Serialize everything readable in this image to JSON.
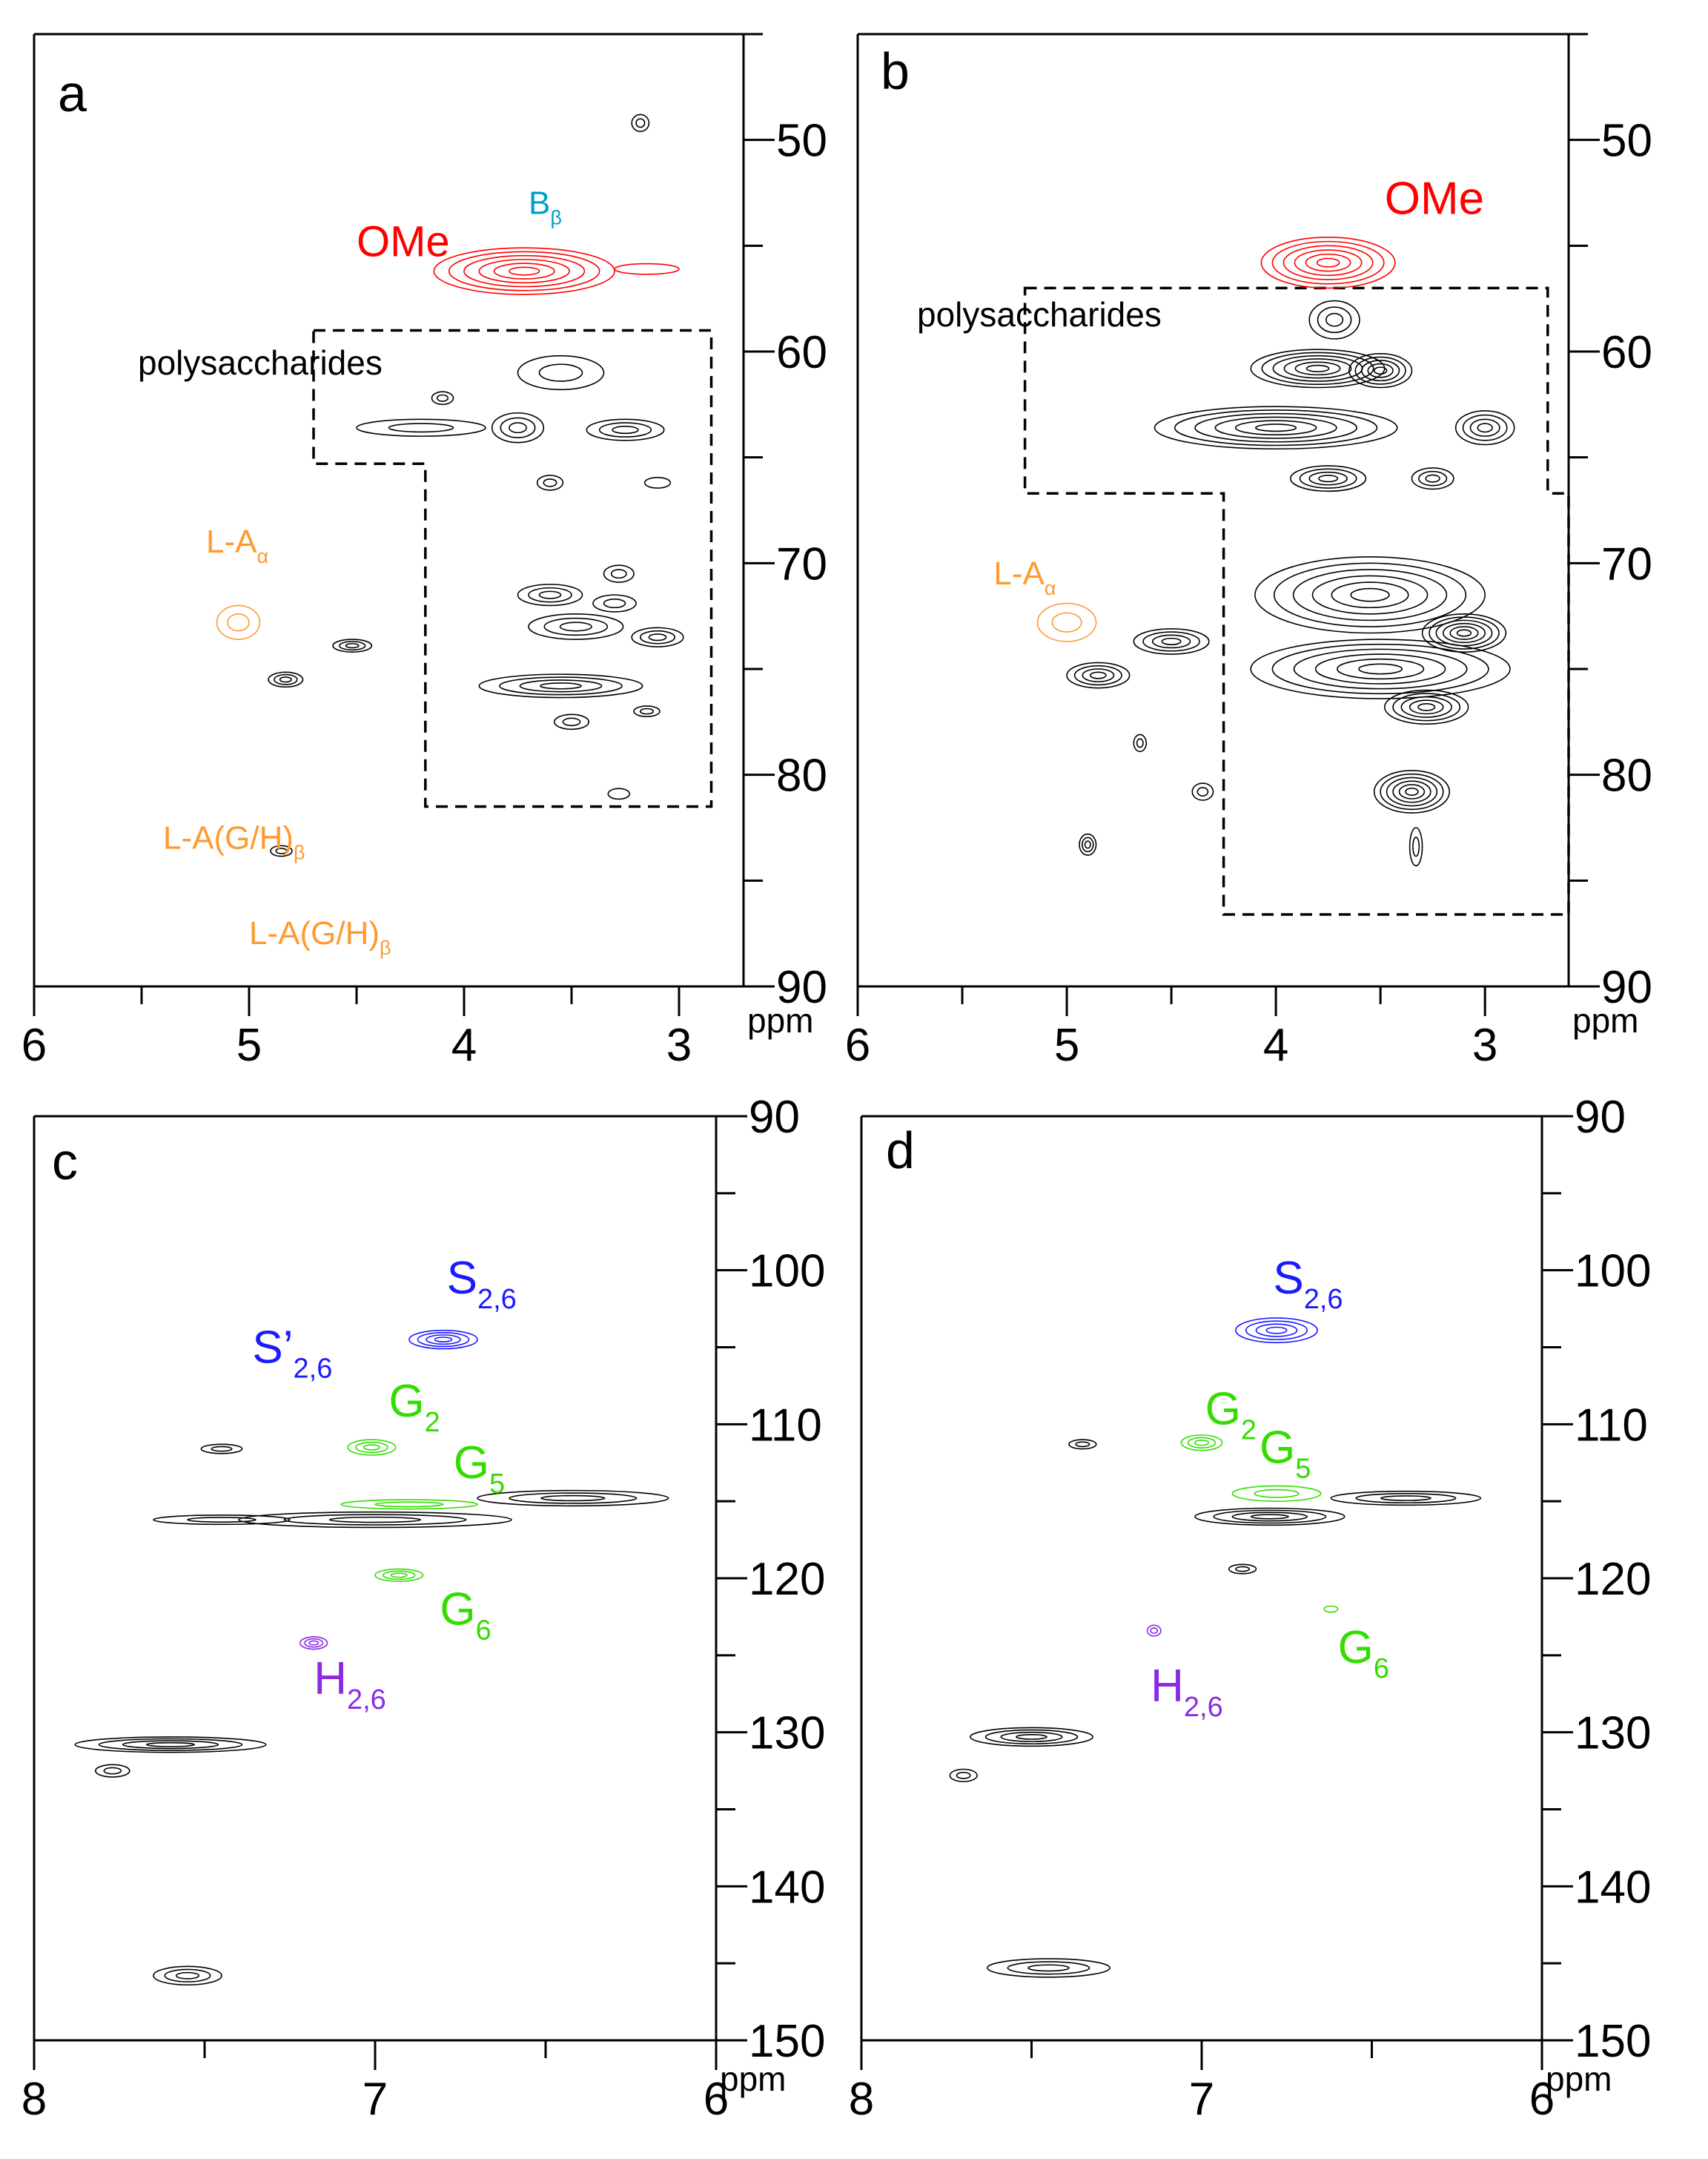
{
  "figure": {
    "description_unit": "ppm",
    "colors": {
      "axis": "#000000",
      "contour": "#000000",
      "ome": "#ff0000",
      "bbeta": "#00a0c8",
      "la": "#ff9a2e",
      "syringyl": "#1a1aff",
      "guaiacyl": "#33dd00",
      "hydroxyphenyl": "#8a2be2"
    }
  },
  "chart_data": [
    {
      "id": "a",
      "type": "contour",
      "panel_label": "a",
      "xlabel": "ppm",
      "x_range": [
        6,
        2.7
      ],
      "y_range": [
        45,
        90
      ],
      "x_ticks": [
        6,
        5,
        4,
        3
      ],
      "x_tick_labels": [
        "6",
        "5",
        "4",
        "3"
      ],
      "y_ticks": [
        50,
        60,
        70,
        80,
        90
      ],
      "y_tick_labels": [
        "50",
        "60",
        "70",
        "80",
        "90"
      ],
      "region_label": "polysaccharides",
      "region_polygon_ppm": [
        [
          4.7,
          59
        ],
        [
          2.85,
          59
        ],
        [
          2.85,
          81.5
        ],
        [
          4.18,
          81.5
        ],
        [
          4.18,
          65.3
        ],
        [
          4.7,
          65.3
        ]
      ],
      "annotations": [
        {
          "text": "OMe",
          "sub": "",
          "color": "ome",
          "x": 4.5,
          "y": 55.5,
          "size": 58
        },
        {
          "text": "B",
          "sub": "β",
          "color": "bbeta",
          "x": 3.7,
          "y": 53.5,
          "size": 44
        },
        {
          "text": "L-A",
          "sub": "α",
          "color": "la",
          "x": 5.2,
          "y": 69.5,
          "size": 44
        },
        {
          "text": "L-A(G/H)",
          "sub": "β",
          "color": "la",
          "x": 5.4,
          "y": 83.5,
          "size": 44
        },
        {
          "text": "L-A(G/H)",
          "sub": "β",
          "color": "la",
          "x": 5.0,
          "y": 88.0,
          "size": 44
        }
      ],
      "peaks": [
        {
          "x": 3.72,
          "y": 56.2,
          "w": 0.42,
          "h": 1.1,
          "n": 6,
          "color": "ome"
        },
        {
          "x": 3.15,
          "y": 56.1,
          "w": 0.15,
          "h": 0.25,
          "n": 1,
          "color": "ome"
        },
        {
          "x": 3.18,
          "y": 49.2,
          "w": 0.04,
          "h": 0.4,
          "n": 2,
          "color": "contour"
        },
        {
          "x": 3.75,
          "y": 63.6,
          "w": 0.12,
          "h": 0.7,
          "n": 3,
          "color": "contour"
        },
        {
          "x": 4.2,
          "y": 63.6,
          "w": 0.3,
          "h": 0.4,
          "n": 2,
          "color": "contour"
        },
        {
          "x": 3.25,
          "y": 63.7,
          "w": 0.18,
          "h": 0.5,
          "n": 3,
          "color": "contour"
        },
        {
          "x": 3.55,
          "y": 61.0,
          "w": 0.2,
          "h": 0.8,
          "n": 2,
          "color": "contour"
        },
        {
          "x": 4.1,
          "y": 62.2,
          "w": 0.05,
          "h": 0.3,
          "n": 2,
          "color": "contour"
        },
        {
          "x": 3.6,
          "y": 66.2,
          "w": 0.06,
          "h": 0.35,
          "n": 2,
          "color": "contour"
        },
        {
          "x": 3.1,
          "y": 66.2,
          "w": 0.06,
          "h": 0.25,
          "n": 1,
          "color": "contour"
        },
        {
          "x": 3.6,
          "y": 71.5,
          "w": 0.15,
          "h": 0.5,
          "n": 3,
          "color": "contour"
        },
        {
          "x": 3.28,
          "y": 70.5,
          "w": 0.07,
          "h": 0.4,
          "n": 2,
          "color": "contour"
        },
        {
          "x": 3.48,
          "y": 73.0,
          "w": 0.22,
          "h": 0.6,
          "n": 3,
          "color": "contour"
        },
        {
          "x": 3.1,
          "y": 73.5,
          "w": 0.12,
          "h": 0.45,
          "n": 3,
          "color": "contour"
        },
        {
          "x": 3.55,
          "y": 75.8,
          "w": 0.38,
          "h": 0.55,
          "n": 4,
          "color": "contour"
        },
        {
          "x": 3.5,
          "y": 77.5,
          "w": 0.08,
          "h": 0.35,
          "n": 2,
          "color": "contour"
        },
        {
          "x": 3.15,
          "y": 77.0,
          "w": 0.06,
          "h": 0.25,
          "n": 2,
          "color": "contour"
        },
        {
          "x": 3.3,
          "y": 71.9,
          "w": 0.1,
          "h": 0.4,
          "n": 2,
          "color": "contour"
        },
        {
          "x": 3.28,
          "y": 80.9,
          "w": 0.05,
          "h": 0.25,
          "n": 1,
          "color": "contour"
        },
        {
          "x": 4.52,
          "y": 73.9,
          "w": 0.09,
          "h": 0.3,
          "n": 3,
          "color": "contour"
        },
        {
          "x": 4.83,
          "y": 75.5,
          "w": 0.08,
          "h": 0.35,
          "n": 3,
          "color": "contour"
        },
        {
          "x": 5.05,
          "y": 72.8,
          "w": 0.1,
          "h": 0.8,
          "n": 2,
          "color": "la"
        },
        {
          "x": 4.85,
          "y": 83.6,
          "w": 0.05,
          "h": 0.25,
          "n": 2,
          "color": "contour"
        }
      ]
    },
    {
      "id": "b",
      "type": "contour",
      "panel_label": "b",
      "xlabel": "ppm",
      "x_range": [
        6,
        2.6
      ],
      "y_range": [
        45,
        90
      ],
      "x_ticks": [
        6,
        5,
        4,
        3
      ],
      "x_tick_labels": [
        "6",
        "5",
        "4",
        "3"
      ],
      "y_ticks": [
        50,
        60,
        70,
        80,
        90
      ],
      "y_tick_labels": [
        "50",
        "60",
        "70",
        "80",
        "90"
      ],
      "region_label": "polysaccharides",
      "region_polygon_ppm": [
        [
          5.2,
          57.0
        ],
        [
          2.7,
          57.0
        ],
        [
          2.7,
          66.7
        ],
        [
          2.6,
          66.7
        ],
        [
          2.6,
          86.6
        ],
        [
          4.25,
          86.6
        ],
        [
          4.25,
          66.7
        ],
        [
          5.2,
          66.7
        ]
      ],
      "annotations": [
        {
          "text": "OMe",
          "sub": "",
          "color": "ome",
          "x": 3.48,
          "y": 53.5,
          "size": 62
        },
        {
          "text": "L-A",
          "sub": "α",
          "color": "la",
          "x": 5.35,
          "y": 71.0,
          "size": 44
        }
      ],
      "peaks": [
        {
          "x": 3.75,
          "y": 55.8,
          "w": 0.32,
          "h": 1.2,
          "n": 6,
          "color": "ome"
        },
        {
          "x": 3.8,
          "y": 60.8,
          "w": 0.32,
          "h": 0.9,
          "n": 6,
          "color": "contour"
        },
        {
          "x": 3.5,
          "y": 60.9,
          "w": 0.15,
          "h": 0.8,
          "n": 5,
          "color": "contour"
        },
        {
          "x": 3.72,
          "y": 58.5,
          "w": 0.12,
          "h": 0.9,
          "n": 3,
          "color": "contour"
        },
        {
          "x": 4.0,
          "y": 63.6,
          "w": 0.58,
          "h": 1.0,
          "n": 6,
          "color": "contour"
        },
        {
          "x": 3.0,
          "y": 63.6,
          "w": 0.14,
          "h": 0.8,
          "n": 4,
          "color": "contour"
        },
        {
          "x": 3.75,
          "y": 66.0,
          "w": 0.18,
          "h": 0.6,
          "n": 4,
          "color": "contour"
        },
        {
          "x": 3.25,
          "y": 66.0,
          "w": 0.1,
          "h": 0.5,
          "n": 3,
          "color": "contour"
        },
        {
          "x": 3.55,
          "y": 71.5,
          "w": 0.55,
          "h": 1.8,
          "n": 6,
          "color": "contour"
        },
        {
          "x": 3.1,
          "y": 73.3,
          "w": 0.2,
          "h": 0.9,
          "n": 6,
          "color": "contour"
        },
        {
          "x": 3.5,
          "y": 75.0,
          "w": 0.62,
          "h": 1.4,
          "n": 6,
          "color": "contour"
        },
        {
          "x": 3.28,
          "y": 76.8,
          "w": 0.2,
          "h": 0.8,
          "n": 5,
          "color": "contour"
        },
        {
          "x": 3.35,
          "y": 80.8,
          "w": 0.18,
          "h": 1.0,
          "n": 6,
          "color": "contour"
        },
        {
          "x": 3.33,
          "y": 83.4,
          "w": 0.03,
          "h": 0.9,
          "n": 2,
          "color": "contour"
        },
        {
          "x": 4.5,
          "y": 73.7,
          "w": 0.18,
          "h": 0.6,
          "n": 4,
          "color": "contour"
        },
        {
          "x": 4.85,
          "y": 75.3,
          "w": 0.15,
          "h": 0.6,
          "n": 4,
          "color": "contour"
        },
        {
          "x": 4.65,
          "y": 78.5,
          "w": 0.03,
          "h": 0.4,
          "n": 2,
          "color": "contour"
        },
        {
          "x": 4.35,
          "y": 80.8,
          "w": 0.05,
          "h": 0.4,
          "n": 2,
          "color": "contour"
        },
        {
          "x": 4.9,
          "y": 83.3,
          "w": 0.04,
          "h": 0.5,
          "n": 3,
          "color": "contour"
        },
        {
          "x": 5.0,
          "y": 72.8,
          "w": 0.14,
          "h": 0.9,
          "n": 2,
          "color": "la"
        }
      ]
    },
    {
      "id": "c",
      "type": "contour",
      "panel_label": "c",
      "xlabel": "ppm",
      "x_range": [
        8,
        6
      ],
      "y_range": [
        90,
        150
      ],
      "x_ticks": [
        8,
        7,
        6
      ],
      "x_tick_labels": [
        "8",
        "7",
        "6"
      ],
      "y_ticks": [
        90,
        100,
        110,
        120,
        130,
        140,
        150
      ],
      "y_tick_labels": [
        "90",
        "100",
        "110",
        "120",
        "130",
        "140",
        "150"
      ],
      "annotations": [
        {
          "text": "S",
          "sub": "2,6",
          "color": "syringyl",
          "x": 6.79,
          "y": 101.5,
          "size": 62
        },
        {
          "text": "S’",
          "sub": "2,6",
          "color": "syringyl",
          "x": 7.36,
          "y": 106.0,
          "size": 62
        },
        {
          "text": "G",
          "sub": "2",
          "color": "guaiacyl",
          "x": 6.96,
          "y": 109.5,
          "size": 62
        },
        {
          "text": "G",
          "sub": "5",
          "color": "guaiacyl",
          "x": 6.77,
          "y": 113.5,
          "size": 62
        },
        {
          "text": "G",
          "sub": "6",
          "color": "guaiacyl",
          "x": 6.81,
          "y": 123.0,
          "size": 62
        },
        {
          "text": "H",
          "sub": "2,6",
          "color": "hydroxyphenyl",
          "x": 7.18,
          "y": 127.5,
          "size": 62
        }
      ],
      "peaks": [
        {
          "x": 6.8,
          "y": 104.5,
          "w": 0.1,
          "h": 0.6,
          "n": 4,
          "color": "syringyl"
        },
        {
          "x": 7.01,
          "y": 111.5,
          "w": 0.07,
          "h": 0.5,
          "n": 3,
          "color": "guaiacyl"
        },
        {
          "x": 6.9,
          "y": 115.2,
          "w": 0.2,
          "h": 0.3,
          "n": 2,
          "color": "guaiacyl"
        },
        {
          "x": 6.93,
          "y": 119.8,
          "w": 0.07,
          "h": 0.4,
          "n": 3,
          "color": "guaiacyl"
        },
        {
          "x": 7.18,
          "y": 124.2,
          "w": 0.04,
          "h": 0.4,
          "n": 3,
          "color": "hydroxyphenyl"
        },
        {
          "x": 6.42,
          "y": 114.8,
          "w": 0.28,
          "h": 0.5,
          "n": 3,
          "color": "contour"
        },
        {
          "x": 7.0,
          "y": 116.2,
          "w": 0.4,
          "h": 0.5,
          "n": 3,
          "color": "contour"
        },
        {
          "x": 7.45,
          "y": 116.2,
          "w": 0.2,
          "h": 0.3,
          "n": 2,
          "color": "contour"
        },
        {
          "x": 7.45,
          "y": 111.6,
          "w": 0.06,
          "h": 0.3,
          "n": 2,
          "color": "contour"
        },
        {
          "x": 7.6,
          "y": 130.8,
          "w": 0.28,
          "h": 0.5,
          "n": 4,
          "color": "contour"
        },
        {
          "x": 7.77,
          "y": 132.5,
          "w": 0.05,
          "h": 0.4,
          "n": 2,
          "color": "contour"
        },
        {
          "x": 7.55,
          "y": 145.8,
          "w": 0.1,
          "h": 0.6,
          "n": 3,
          "color": "contour"
        }
      ]
    },
    {
      "id": "d",
      "type": "contour",
      "panel_label": "d",
      "xlabel": "ppm",
      "x_range": [
        8,
        6
      ],
      "y_range": [
        90,
        150
      ],
      "x_ticks": [
        8,
        7,
        6
      ],
      "x_tick_labels": [
        "8",
        "7",
        "6"
      ],
      "y_ticks": [
        90,
        100,
        110,
        120,
        130,
        140,
        150
      ],
      "y_tick_labels": [
        "90",
        "100",
        "110",
        "120",
        "130",
        "140",
        "150"
      ],
      "annotations": [
        {
          "text": "S",
          "sub": "2,6",
          "color": "syringyl",
          "x": 6.79,
          "y": 101.5,
          "size": 62
        },
        {
          "text": "G",
          "sub": "2",
          "color": "guaiacyl",
          "x": 6.99,
          "y": 110.0,
          "size": 62
        },
        {
          "text": "G",
          "sub": "5",
          "color": "guaiacyl",
          "x": 6.83,
          "y": 112.5,
          "size": 62
        },
        {
          "text": "G",
          "sub": "6",
          "color": "guaiacyl",
          "x": 6.6,
          "y": 125.5,
          "size": 62
        },
        {
          "text": "H",
          "sub": "2,6",
          "color": "hydroxyphenyl",
          "x": 7.15,
          "y": 128.0,
          "size": 62
        }
      ],
      "peaks": [
        {
          "x": 6.78,
          "y": 103.9,
          "w": 0.12,
          "h": 0.8,
          "n": 4,
          "color": "syringyl"
        },
        {
          "x": 7.0,
          "y": 111.2,
          "w": 0.06,
          "h": 0.5,
          "n": 3,
          "color": "guaiacyl"
        },
        {
          "x": 6.78,
          "y": 114.5,
          "w": 0.13,
          "h": 0.5,
          "n": 2,
          "color": "guaiacyl"
        },
        {
          "x": 6.62,
          "y": 122.0,
          "w": 0.02,
          "h": 0.2,
          "n": 1,
          "color": "guaiacyl"
        },
        {
          "x": 7.14,
          "y": 123.4,
          "w": 0.02,
          "h": 0.35,
          "n": 2,
          "color": "hydroxyphenyl"
        },
        {
          "x": 6.4,
          "y": 114.8,
          "w": 0.22,
          "h": 0.45,
          "n": 3,
          "color": "contour"
        },
        {
          "x": 6.8,
          "y": 116.0,
          "w": 0.22,
          "h": 0.55,
          "n": 4,
          "color": "contour"
        },
        {
          "x": 7.35,
          "y": 111.3,
          "w": 0.04,
          "h": 0.3,
          "n": 2,
          "color": "contour"
        },
        {
          "x": 6.88,
          "y": 119.4,
          "w": 0.04,
          "h": 0.3,
          "n": 2,
          "color": "contour"
        },
        {
          "x": 7.5,
          "y": 130.3,
          "w": 0.18,
          "h": 0.6,
          "n": 4,
          "color": "contour"
        },
        {
          "x": 7.7,
          "y": 132.8,
          "w": 0.04,
          "h": 0.4,
          "n": 2,
          "color": "contour"
        },
        {
          "x": 7.45,
          "y": 145.3,
          "w": 0.18,
          "h": 0.6,
          "n": 3,
          "color": "contour"
        }
      ]
    }
  ]
}
